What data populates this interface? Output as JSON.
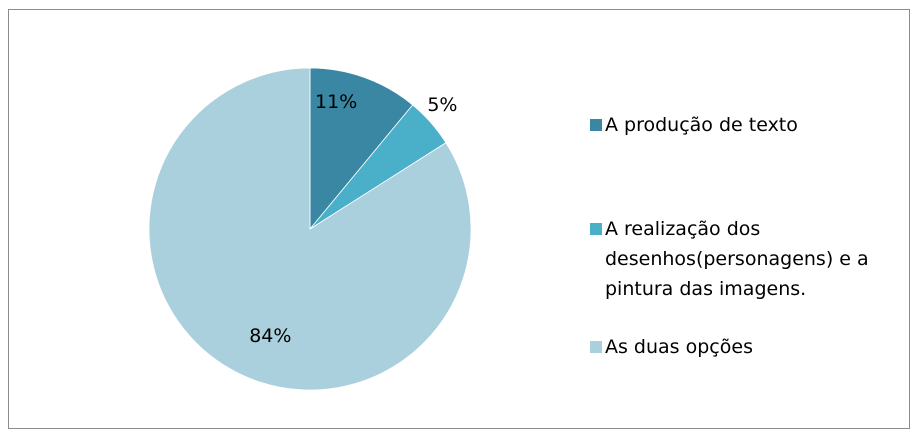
{
  "chart_data": {
    "type": "pie",
    "title": "",
    "slices": [
      {
        "label": "A produção de texto",
        "value": 11,
        "display": "11%",
        "color": "#3a87a3"
      },
      {
        "label": "A realização dos desenhos(personagens) e a pintura das imagens.",
        "value": 5,
        "display": "5%",
        "color": "#4aafc9"
      },
      {
        "label": "As duas opções",
        "value": 84,
        "display": "84%",
        "color": "#a9d0dc"
      }
    ],
    "start_angle_deg": 0,
    "direction": "clockwise",
    "legend_placement": "right",
    "data_labels": true
  }
}
